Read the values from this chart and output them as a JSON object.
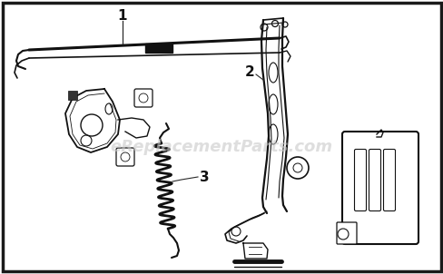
{
  "bg_color": "#ffffff",
  "border_color": "#1a1a1a",
  "border_linewidth": 2.5,
  "watermark_text": "eReplacementParts.com",
  "watermark_color": "#c8c8c8",
  "watermark_fontsize": 13,
  "label_fontsize": 11,
  "label_color": "#111111",
  "lc": "#2a2a2a",
  "lc_dark": "#111111",
  "figsize": [
    4.89,
    3.02
  ],
  "dpi": 100
}
